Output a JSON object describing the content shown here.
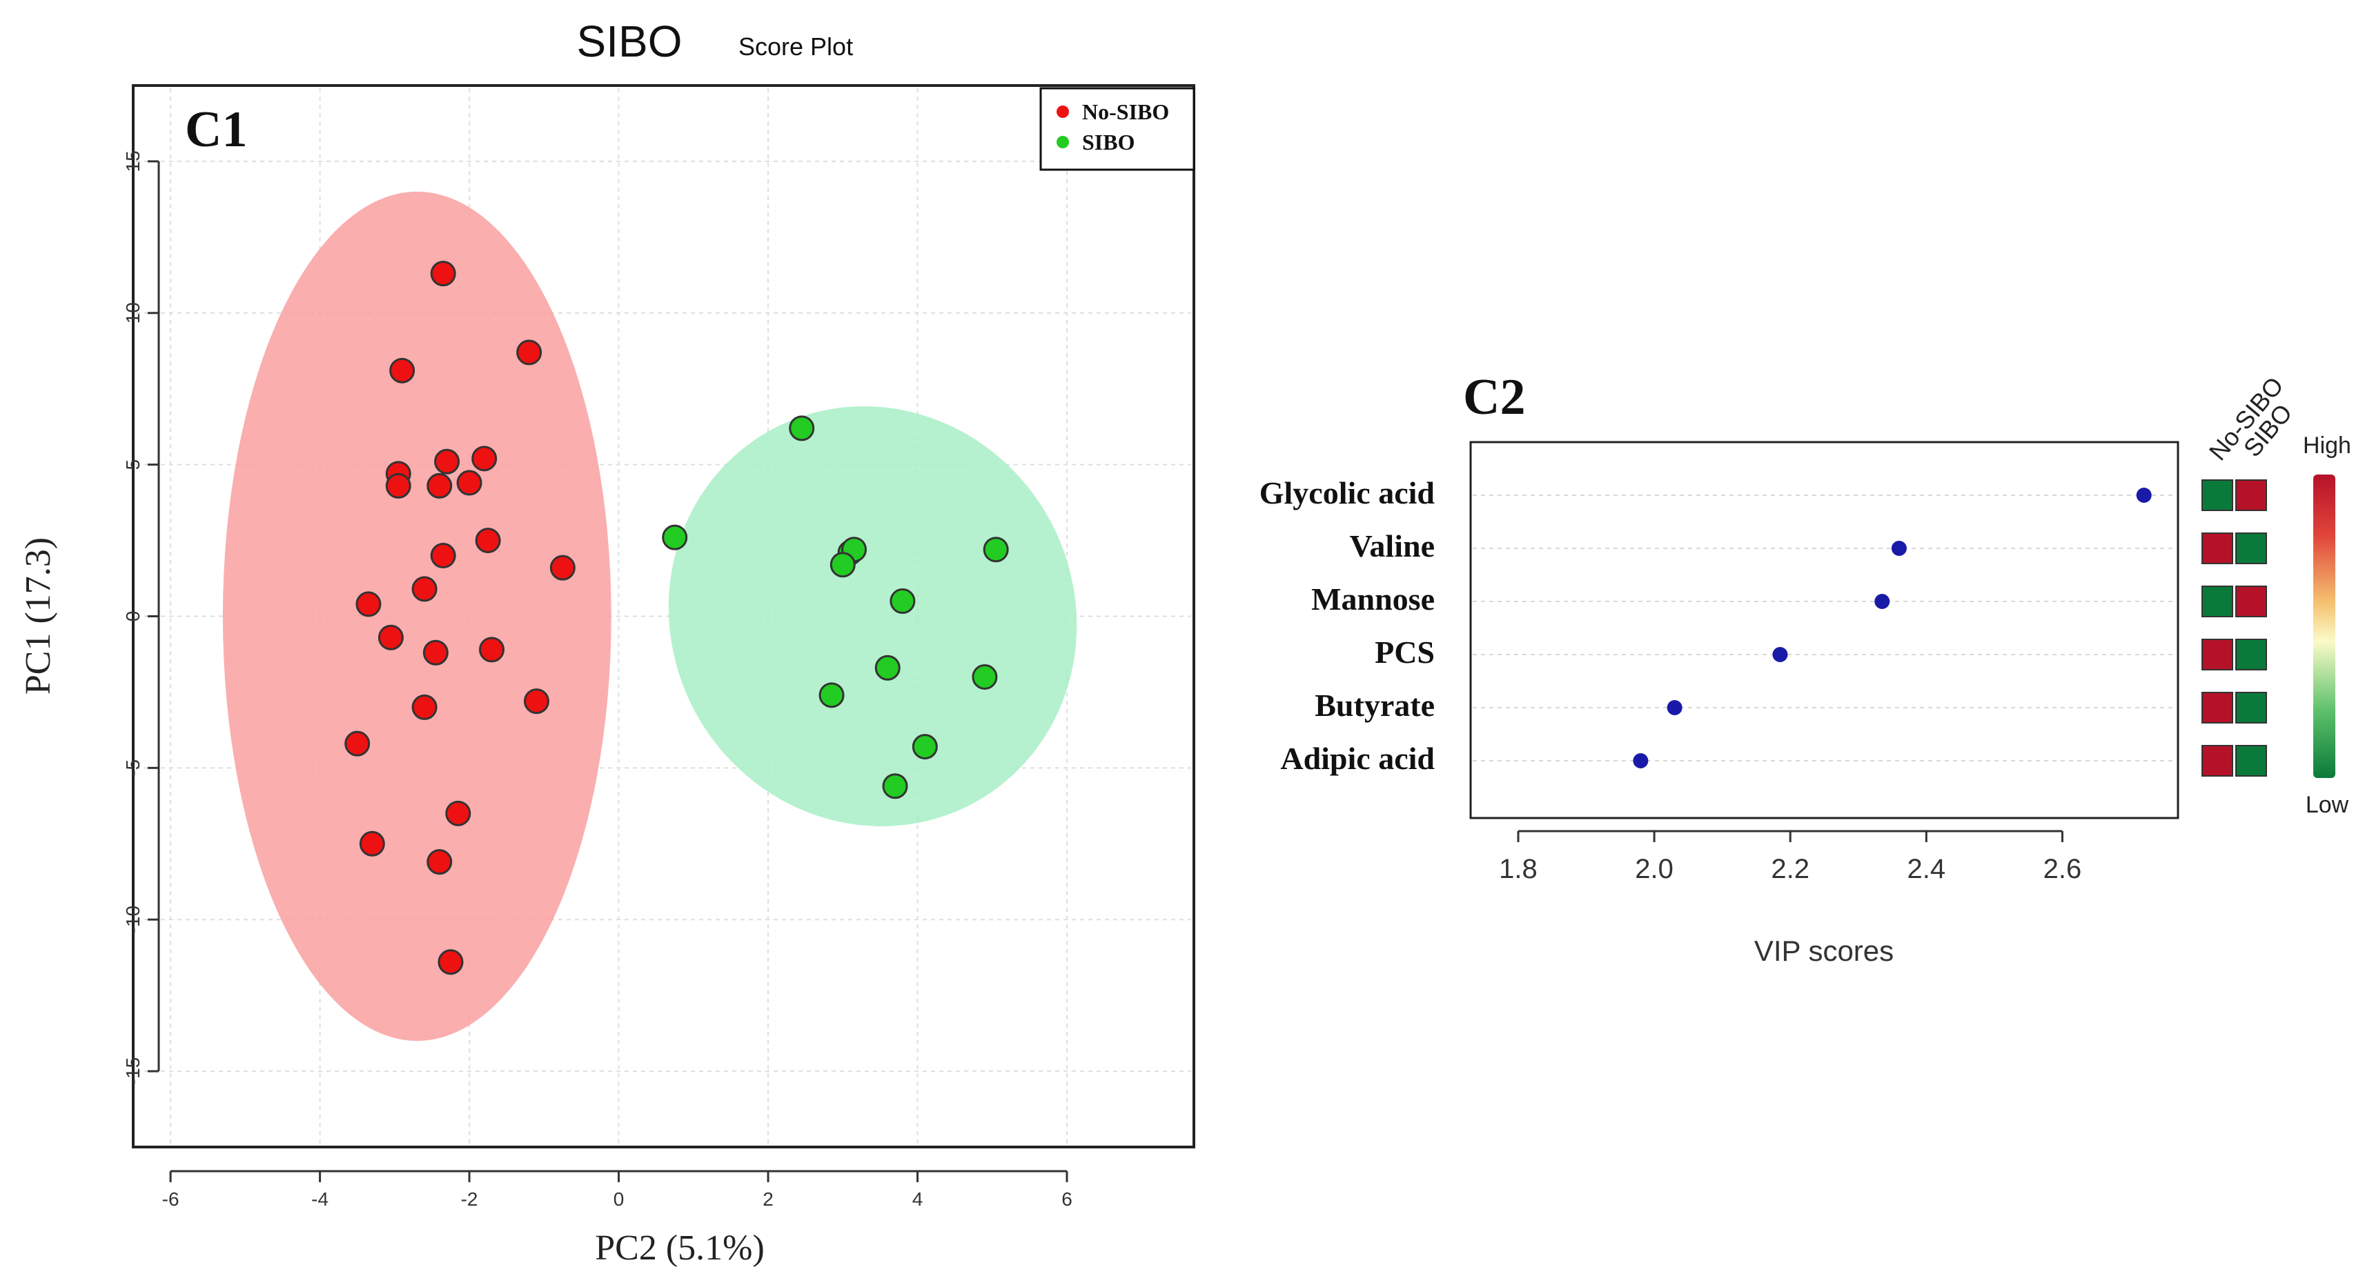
{
  "figure": {
    "title": "SIBO",
    "subtitle": "Score Plot"
  },
  "chart_data": [
    {
      "type": "scatter",
      "panel_label": "C1",
      "title": "SIBO",
      "subtitle": "Score Plot",
      "xlabel": "PC2 (5.1%)",
      "ylabel": "PC1 (17.3)",
      "xlim": [
        -6.5,
        7.7
      ],
      "ylim": [
        -17.5,
        17.5
      ],
      "xticks": [
        -6,
        -4,
        -2,
        0,
        2,
        4,
        6
      ],
      "yticks": [
        -15,
        -10,
        -5,
        0,
        5,
        10,
        15
      ],
      "grid": true,
      "legend_position": "top-right",
      "series": [
        {
          "name": "No-SIBO",
          "color": "#ee1111",
          "ellipse_color": "#f9a0a0",
          "ellipse": {
            "cx": -2.7,
            "cy": 0,
            "rx": 2.6,
            "ry": 14,
            "angle": 0
          },
          "x": [
            -2.35,
            -2.9,
            -1.2,
            -2.95,
            -2.95,
            -2.3,
            -1.8,
            -2.0,
            -2.4,
            -1.75,
            -2.35,
            -0.75,
            -2.6,
            -3.35,
            -3.05,
            -2.45,
            -1.7,
            -2.6,
            -1.1,
            -3.5,
            -2.15,
            -3.3,
            -2.4,
            -2.25
          ],
          "y": [
            11.3,
            8.1,
            8.7,
            4.7,
            4.3,
            5.1,
            5.2,
            4.4,
            4.3,
            2.5,
            2.0,
            1.6,
            0.9,
            0.4,
            -0.7,
            -1.2,
            -1.1,
            -3.0,
            -2.8,
            -4.2,
            -6.5,
            -7.5,
            -8.1,
            -11.4
          ]
        },
        {
          "name": "SIBO",
          "color": "#22cc22",
          "ellipse_color": "#a8efc5",
          "ellipse": {
            "cx": 3.4,
            "cy": 0,
            "rx": 2.7,
            "ry": 7.0,
            "angle": 0
          },
          "x": [
            2.45,
            0.75,
            3.1,
            3.15,
            3.0,
            5.05,
            3.8,
            3.6,
            4.9,
            2.85,
            4.1,
            3.7
          ],
          "y": [
            6.2,
            2.6,
            2.1,
            2.2,
            1.7,
            2.2,
            0.5,
            -1.7,
            -2.0,
            -2.6,
            -4.3,
            -5.6
          ]
        }
      ]
    },
    {
      "type": "scatter",
      "panel_label": "C2",
      "xlabel": "VIP scores",
      "xlim": [
        1.73,
        2.77
      ],
      "xticks": [
        "1.8",
        "2.0",
        "2.2",
        "2.4",
        "2.6"
      ],
      "grid": true,
      "point_color": "#1a1aa8",
      "categories": [
        "Glycolic acid",
        "Valine",
        "Mannose",
        "PCS",
        "Butyrate",
        "Adipic acid"
      ],
      "values": [
        2.72,
        2.36,
        2.335,
        2.185,
        2.03,
        1.98
      ],
      "heatmap": {
        "columns": [
          "No-SIBO",
          "SIBO"
        ],
        "cells": [
          [
            "Low",
            "High"
          ],
          [
            "High",
            "Low"
          ],
          [
            "Low",
            "High"
          ],
          [
            "High",
            "Low"
          ],
          [
            "High",
            "Low"
          ],
          [
            "High",
            "Low"
          ]
        ],
        "high_color": "#b5122a",
        "low_color": "#0a7a3a",
        "legend_high": "High",
        "legend_low": "Low"
      }
    }
  ]
}
